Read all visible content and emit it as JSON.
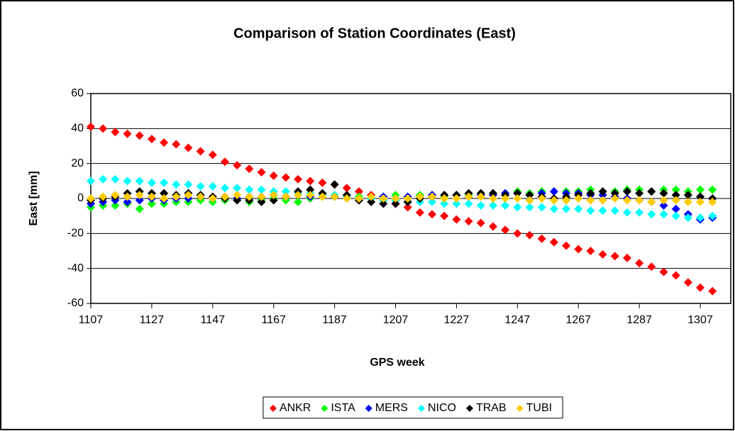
{
  "chart_data": {
    "type": "scatter",
    "title": "Comparison of Station Coordinates (East)",
    "x_label": "GPS week",
    "y_label": "East [mm]",
    "x": [
      1107,
      1111,
      1115,
      1119,
      1123,
      1127,
      1131,
      1135,
      1139,
      1143,
      1147,
      1151,
      1155,
      1159,
      1163,
      1167,
      1171,
      1175,
      1179,
      1183,
      1187,
      1191,
      1195,
      1199,
      1203,
      1207,
      1211,
      1215,
      1219,
      1223,
      1227,
      1231,
      1235,
      1239,
      1243,
      1247,
      1251,
      1255,
      1259,
      1263,
      1267,
      1271,
      1275,
      1279,
      1283,
      1287,
      1291,
      1295,
      1299,
      1303,
      1307,
      1311
    ],
    "series": [
      {
        "name": "ANKR",
        "color": "#ff0000",
        "values": [
          41,
          40,
          38,
          37,
          36,
          34,
          32,
          31,
          29,
          27,
          25,
          21,
          19,
          17,
          15,
          13,
          12,
          11,
          10,
          9,
          8,
          6,
          4,
          2,
          -1,
          -3,
          -5,
          -8,
          -9,
          -10,
          -12,
          -13,
          -14,
          -16,
          -18,
          -20,
          -21,
          -23,
          -25,
          -27,
          -29,
          -30,
          -32,
          -33,
          -34,
          -37,
          -39,
          -42,
          -44,
          -48,
          -51,
          -53
        ]
      },
      {
        "name": "ISTA",
        "color": "#00ff00",
        "values": [
          -5,
          -4,
          -4,
          -3,
          -6,
          -3,
          -3,
          -2,
          -2,
          -1,
          -2,
          -1,
          -1,
          -2,
          -1,
          0,
          -1,
          -2,
          0,
          1,
          1,
          0,
          1,
          0,
          1,
          2,
          1,
          2,
          2,
          1,
          2,
          2,
          3,
          3,
          3,
          4,
          3,
          4,
          4,
          4,
          4,
          5,
          4,
          4,
          5,
          5,
          4,
          5,
          5,
          4,
          5,
          5
        ]
      },
      {
        "name": "MERS",
        "color": "#0000ff",
        "values": [
          -3,
          -2,
          -1,
          -2,
          -1,
          0,
          -1,
          0,
          0,
          1,
          0,
          1,
          0,
          1,
          1,
          2,
          1,
          2,
          1,
          2,
          1,
          0,
          -1,
          0,
          1,
          0,
          1,
          1,
          2,
          2,
          2,
          1,
          2,
          2,
          3,
          3,
          2,
          3,
          4,
          3,
          3,
          2,
          2,
          1,
          0,
          -1,
          -2,
          -4,
          -6,
          -9,
          -12,
          -11
        ]
      },
      {
        "name": "NICO",
        "color": "#00ffff",
        "values": [
          10,
          11,
          11,
          10,
          10,
          9,
          9,
          8,
          8,
          7,
          7,
          6,
          6,
          5,
          5,
          4,
          4,
          3,
          3,
          2,
          2,
          1,
          0,
          0,
          -1,
          -1,
          -2,
          -2,
          -2,
          -3,
          -3,
          -3,
          -4,
          -4,
          -4,
          -5,
          -5,
          -5,
          -6,
          -6,
          -6,
          -7,
          -7,
          -7,
          -8,
          -8,
          -9,
          -9,
          -10,
          -11,
          -11,
          -10
        ]
      },
      {
        "name": "TRAB",
        "color": "#000000",
        "values": [
          -1,
          0,
          1,
          3,
          4,
          3,
          3,
          2,
          3,
          2,
          1,
          0,
          -1,
          -1,
          -2,
          -1,
          1,
          4,
          5,
          3,
          8,
          2,
          -1,
          -2,
          -3,
          -3,
          -2,
          0,
          1,
          2,
          2,
          3,
          3,
          3,
          2,
          3,
          2,
          1,
          0,
          1,
          2,
          3,
          4,
          3,
          4,
          3,
          4,
          3,
          2,
          2,
          1,
          0
        ]
      },
      {
        "name": "TUBI",
        "color": "#ffcc00",
        "values": [
          0,
          1,
          2,
          1,
          2,
          1,
          0,
          1,
          2,
          1,
          0,
          1,
          2,
          1,
          1,
          2,
          1,
          2,
          2,
          1,
          1,
          0,
          0,
          1,
          0,
          0,
          0,
          1,
          1,
          0,
          0,
          1,
          1,
          0,
          0,
          0,
          -1,
          0,
          -1,
          -1,
          0,
          -1,
          -1,
          0,
          -1,
          -1,
          -2,
          -1,
          -1,
          -2,
          -2,
          -2
        ]
      }
    ],
    "xlim": [
      1107,
      1317
    ],
    "xticks": [
      1107,
      1127,
      1147,
      1167,
      1187,
      1207,
      1227,
      1247,
      1267,
      1287,
      1307
    ],
    "ylim": [
      -60,
      60
    ],
    "yticks": [
      -60,
      -40,
      -20,
      0,
      20,
      40,
      60
    ],
    "grid": true,
    "legend": "bottom"
  }
}
